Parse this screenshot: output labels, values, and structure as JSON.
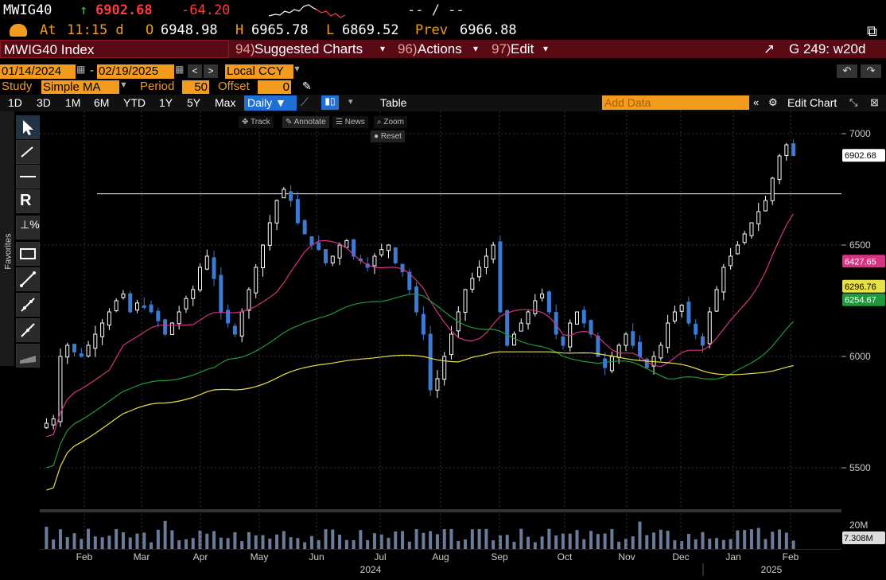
{
  "header": {
    "ticker": "MWIG40",
    "last_price": "6902.68",
    "change": "-64.20",
    "bid_ask": "-- / --",
    "at_label": "At",
    "time": "11:15 d",
    "open_label": "O",
    "open": "6948.98",
    "high_label": "H",
    "high": "6965.78",
    "low_label": "L",
    "low": "6869.52",
    "prev_label": "Prev",
    "prev": "6966.88"
  },
  "menubar": {
    "security": "MWIG40 Index",
    "suggested_num": "94)",
    "suggested": "Suggested Charts",
    "actions_num": "96)",
    "actions": "Actions",
    "edit_num": "97)",
    "edit": "Edit",
    "graph_id": "G 249: w20d"
  },
  "controls": {
    "start_date": "01/14/2024",
    "end_date": "02/19/2025",
    "currency": "Local CCY",
    "study_label": "Study",
    "study_value": "Simple MA",
    "period_label": "Period",
    "period_value": "50",
    "offset_label": "Offset",
    "offset_value": "0"
  },
  "ranges": [
    "1D",
    "3D",
    "1M",
    "6M",
    "YTD",
    "1Y",
    "5Y",
    "Max"
  ],
  "frequency": "Daily",
  "table_label": "Table",
  "add_data_placeholder": "Add Data",
  "edit_chart": "Edit Chart",
  "chart_tools": {
    "track": "Track",
    "annotate": "Annotate",
    "news": "News",
    "zoom": "Zoom",
    "reset": "Reset"
  },
  "favorites_label": "Favorites",
  "colors": {
    "accent": "#f39b1c",
    "red_bar": "#5a0a14",
    "up": "#ffffff",
    "down": "#3a7bd5",
    "ma_pink": "#d63384",
    "ma_green": "#1e9a3a",
    "ma_yellow": "#e8e047",
    "price_label": "#ffffff",
    "down_text": "#ff3b3b",
    "up_arrow": "#2ecc40"
  },
  "chart_data": {
    "type": "candlestick",
    "y_ticks": [
      "7000",
      "6500",
      "6000",
      "5500"
    ],
    "ylim": [
      5300,
      7100
    ],
    "x_labels": [
      "Feb",
      "Mar",
      "Apr",
      "May",
      "Jun",
      "Jul",
      "Aug",
      "Sep",
      "Oct",
      "Nov",
      "Dec",
      "Jan",
      "Feb"
    ],
    "year_labels": [
      "2024",
      "2025"
    ],
    "horizontal_line": 6730,
    "last_label": "6902.68",
    "ma_labels": {
      "pink": "6427.65",
      "yellow": "6296.76",
      "green": "6254.67"
    },
    "volume_ticks": [
      "20M"
    ],
    "volume_last": "7.308M",
    "close_series": [
      5700,
      5720,
      6000,
      6050,
      6020,
      6000,
      6050,
      6100,
      6150,
      6200,
      6250,
      6280,
      6200,
      6240,
      6220,
      6200,
      6160,
      6100,
      6150,
      6200,
      6260,
      6300,
      6400,
      6450,
      6350,
      6200,
      6150,
      6100,
      6200,
      6300,
      6400,
      6500,
      6600,
      6700,
      6750,
      6700,
      6600,
      6550,
      6500,
      6480,
      6420,
      6450,
      6500,
      6520,
      6450,
      6430,
      6400,
      6450,
      6480,
      6500,
      6420,
      6380,
      6300,
      6200,
      6100,
      5850,
      5900,
      6000,
      6100,
      6200,
      6300,
      6350,
      6400,
      6450,
      6500,
      6200,
      6050,
      6100,
      6150,
      6200,
      6250,
      6280,
      6200,
      6100,
      6050,
      6150,
      6200,
      6150,
      6100,
      6000,
      5950,
      6000,
      6050,
      6100,
      6050,
      6000,
      5950,
      6000,
      6050,
      6150,
      6200,
      6230,
      6150,
      6100,
      6050,
      6200,
      6300,
      6400,
      6450,
      6500,
      6550,
      6600,
      6650,
      6700,
      6800,
      6900,
      6950,
      6902
    ]
  }
}
